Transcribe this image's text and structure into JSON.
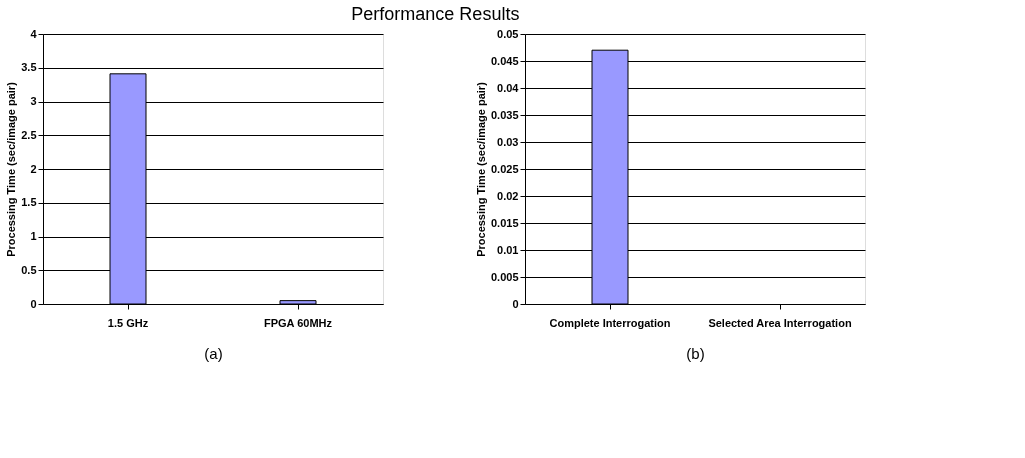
{
  "chart_data": [
    {
      "type": "bar",
      "title": "Performance Results",
      "categories": [
        "1.5 GHz",
        "FPGA 60MHz"
      ],
      "values": [
        3.41,
        0.05
      ],
      "color": "#9999ff",
      "ylabel": "Processing Time (sec/image pair)",
      "xlabel": "(a)",
      "ylim": [
        0,
        4
      ],
      "yticks": [
        0,
        0.5,
        1,
        1.5,
        2,
        2.5,
        3,
        3.5,
        4
      ],
      "grid": "y",
      "legend": false
    },
    {
      "type": "bar",
      "categories": [
        "Complete Interrogation",
        "Selected Area Interrogation"
      ],
      "values": [
        0.047,
        null
      ],
      "color": "#9999ff",
      "ylabel": "Processing Time (sec/image pair)",
      "xlabel": "(b)",
      "ylim": [
        0,
        0.05
      ],
      "yticks": [
        0,
        0.005,
        0.01,
        0.015,
        0.02,
        0.025,
        0.03,
        0.035,
        0.04,
        0.045,
        0.05
      ],
      "grid": "y",
      "legend": false
    }
  ]
}
